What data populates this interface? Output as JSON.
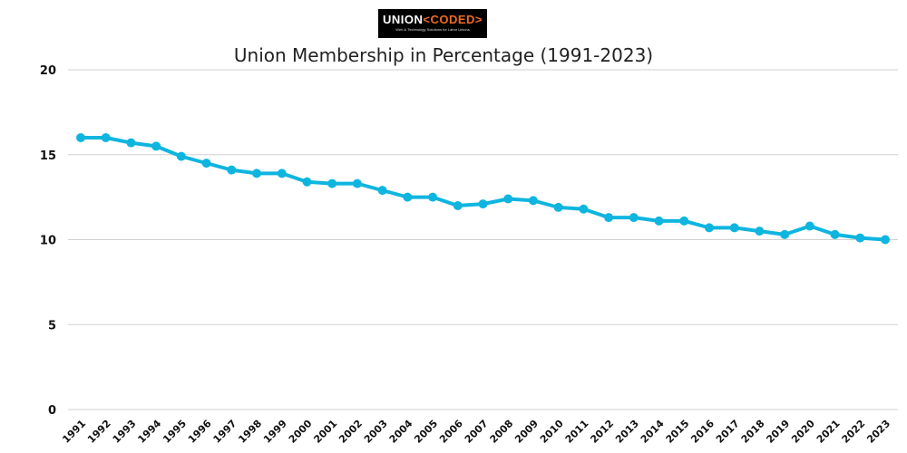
{
  "logo": {
    "text_main": "UNION",
    "text_accent": "<CODED>",
    "tagline": "Web & Technology Solutions for Labor Unions"
  },
  "chart_data": {
    "type": "line",
    "title": "Union Membership in Percentage (1991-2023)",
    "xlabel": "",
    "ylabel": "",
    "ylim": [
      0,
      20
    ],
    "yticks": [
      0,
      5,
      10,
      15,
      20
    ],
    "grid": true,
    "line_color": "#0fb5df",
    "categories": [
      "1991",
      "1992",
      "1993",
      "1994",
      "1995",
      "1996",
      "1997",
      "1998",
      "1999",
      "2000",
      "2001",
      "2002",
      "2003",
      "2004",
      "2005",
      "2006",
      "2007",
      "2008",
      "2009",
      "2010",
      "2011",
      "2012",
      "2013",
      "2014",
      "2015",
      "2016",
      "2017",
      "2018",
      "2019",
      "2020",
      "2021",
      "2022",
      "2023"
    ],
    "values": [
      16.0,
      16.0,
      15.7,
      15.5,
      14.9,
      14.5,
      14.1,
      13.9,
      13.9,
      13.4,
      13.3,
      13.3,
      12.9,
      12.5,
      12.5,
      12.0,
      12.1,
      12.4,
      12.3,
      11.9,
      11.8,
      11.3,
      11.3,
      11.1,
      11.1,
      10.7,
      10.7,
      10.5,
      10.3,
      10.8,
      10.3,
      10.1,
      10.0
    ]
  }
}
